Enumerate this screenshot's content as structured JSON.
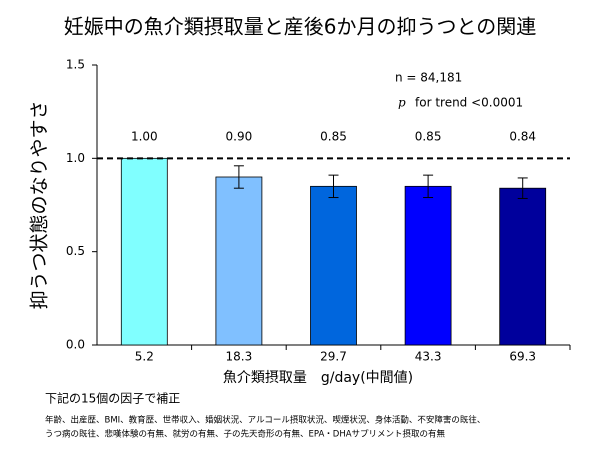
{
  "chart_data": {
    "type": "bar",
    "title": "妊娠中の魚介類摂取量と産後6か月の抑うつとの関連",
    "y_label": "抑うつ状態のなりやすさ",
    "x_label": "魚介類摂取量　g/day(中間値)",
    "categories": [
      "5.2",
      "18.3",
      "29.7",
      "43.3",
      "69.3"
    ],
    "values": [
      1.0,
      0.9,
      0.85,
      0.85,
      0.84
    ],
    "value_labels": [
      "1.00",
      "0.90",
      "0.85",
      "0.85",
      "0.84"
    ],
    "errors": [
      null,
      0.06,
      0.06,
      0.06,
      0.055
    ],
    "colors": [
      "#80ffff",
      "#80c0ff",
      "#0066dd",
      "#0000ff",
      "#00009c"
    ],
    "ylim": [
      0,
      1.5
    ],
    "yticks": [
      {
        "value": 0,
        "label": "0.0"
      },
      {
        "value": 0.5,
        "label": "0.5"
      },
      {
        "value": 1,
        "label": "1.0"
      },
      {
        "value": 1.5,
        "label": "1.5"
      }
    ],
    "reference_line": 1,
    "annotations": {
      "n": "n = 84,181",
      "p_symbol": "p",
      "p_text": "for trend <0.0001"
    },
    "notes": [
      "下記の15個の因子で補正",
      "年齢、出産歴、BMI、教育歴、世帯収入、婚姻状況、アルコール摂取状況、喫煙状況、身体活動、不安障害の既往、",
      "うつ病の既往、悲嘆体験の有無、就労の有無、子の先天奇形の有無、EPA・DHAサプリメント摂取の有無"
    ]
  }
}
